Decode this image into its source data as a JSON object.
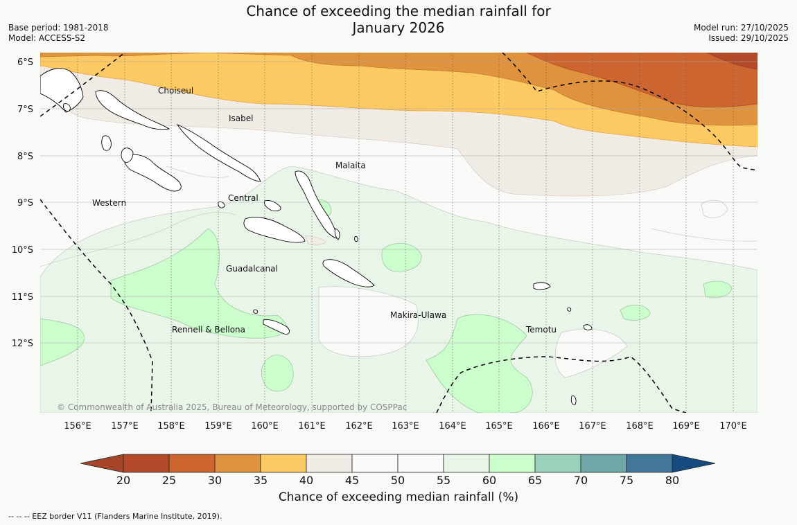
{
  "header": {
    "title_line1": "Chance of exceeding the median rainfall for",
    "title_line2": "January 2026",
    "base_period": "Base period: 1981-2018",
    "model": "Model: ACCESS-S2",
    "model_run": "Model run: 27/10/2025",
    "issued": "Issued: 29/10/2025"
  },
  "map": {
    "lat_labels": [
      "6°S",
      "7°S",
      "8°S",
      "9°S",
      "10°S",
      "11°S",
      "12°S"
    ],
    "lon_labels": [
      "156°E",
      "157°E",
      "158°E",
      "159°E",
      "160°E",
      "161°E",
      "162°E",
      "163°E",
      "164°E",
      "165°E",
      "166°E",
      "167°E",
      "168°E",
      "169°E",
      "170°E"
    ],
    "provinces": [
      {
        "name": "Choiseul"
      },
      {
        "name": "Isabel"
      },
      {
        "name": "Malaita"
      },
      {
        "name": "Western"
      },
      {
        "name": "Central"
      },
      {
        "name": "Guadalcanal"
      },
      {
        "name": "Makira-Ulawa"
      },
      {
        "name": "Rennell & Bellona"
      },
      {
        "name": "Temotu"
      }
    ],
    "copyright": "© Commonwealth of Australia 2025, Bureau of Meteorology, supported by COSPPac"
  },
  "colorbar": {
    "ticks": [
      "20",
      "25",
      "30",
      "35",
      "40",
      "45",
      "50",
      "55",
      "60",
      "65",
      "70",
      "75",
      "80"
    ],
    "colors": [
      "#a6452a",
      "#b34b2a",
      "#cc6530",
      "#e0933f",
      "#fdc963",
      "#f1ebe5",
      "#f9faf8",
      "#f9faf8",
      "#eaf5ea",
      "#ccfdcd",
      "#99d1bb",
      "#6fa6a6",
      "#437799",
      "#154b7f"
    ],
    "label": "Chance of exceeding median rainfall (%)"
  },
  "footer": {
    "eez_note": "--  --  -- EEZ border V11 (Flanders Marine Institute, 2019)."
  }
}
